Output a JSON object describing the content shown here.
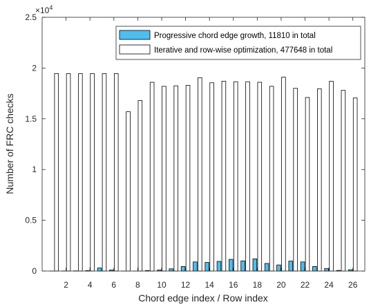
{
  "chart_data": {
    "type": "bar",
    "categories": [
      "1",
      "2",
      "3",
      "4",
      "5",
      "6",
      "7",
      "8",
      "9",
      "10",
      "11",
      "12",
      "13",
      "14",
      "15",
      "16",
      "17",
      "18",
      "19",
      "20",
      "21",
      "22",
      "23",
      "24",
      "25",
      "26"
    ],
    "x_tick_labels": [
      "2",
      "4",
      "6",
      "8",
      "10",
      "12",
      "14",
      "16",
      "18",
      "20",
      "22",
      "24",
      "26"
    ],
    "x_tick_values": [
      2,
      4,
      6,
      8,
      10,
      12,
      14,
      16,
      18,
      20,
      22,
      24,
      26
    ],
    "y_tick_labels": [
      "0",
      "0.5",
      "1",
      "1.5",
      "2",
      "2.5"
    ],
    "y_tick_values": [
      0,
      5000,
      10000,
      15000,
      20000,
      25000
    ],
    "y_exponent_label": "×10",
    "y_exponent_power": "4",
    "xlabel": "Chord edge index / Row index",
    "ylabel": "Number of FRC checks",
    "xlim": [
      0,
      27
    ],
    "ylim": [
      0,
      25000
    ],
    "grid": false,
    "legend_position": "top-right",
    "series": [
      {
        "name": "Progressive chord edge growth, 11810 in total",
        "color": "#4dbeee",
        "values": [
          0,
          10,
          20,
          40,
          300,
          100,
          0,
          0,
          50,
          100,
          220,
          450,
          900,
          850,
          950,
          1150,
          1000,
          1200,
          750,
          600,
          980,
          900,
          450,
          250,
          60,
          130
        ]
      },
      {
        "name": "Iterative and row-wise optimization, 477648 in total",
        "color": "#ffffff",
        "values": [
          19450,
          19450,
          19450,
          19450,
          19450,
          19450,
          15700,
          16800,
          18600,
          18200,
          18250,
          18300,
          19050,
          18550,
          18700,
          18650,
          18650,
          18600,
          18200,
          19100,
          18000,
          17100,
          17950,
          18700,
          17800,
          17050
        ]
      }
    ]
  }
}
